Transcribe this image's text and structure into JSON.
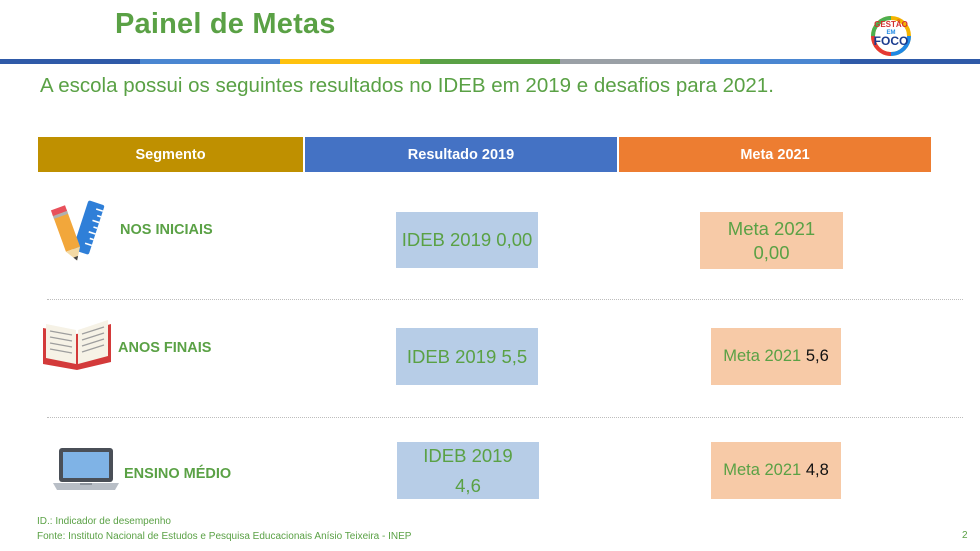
{
  "header": {
    "title": "Painel de Metas",
    "logo_line1": "GESTÃO",
    "logo_line2": "EM",
    "logo_line3": "FOCO"
  },
  "subtitle": "A escola possui os seguintes resultados no IDEB em 2019 e desafios para 2021.",
  "table": {
    "columns": [
      "Segmento",
      "Resultado 2019",
      "Meta 2021"
    ],
    "column_colors": [
      "#bf9000",
      "#4472c4",
      "#ed7d31"
    ],
    "rows": [
      {
        "icon": "pencil-ruler-icon",
        "segment": "NOS INICIAIS",
        "result_line1": "IDEB 2019 0,00",
        "result_line2": "",
        "meta_line1": "Meta 2021",
        "meta_line2": "0,00"
      },
      {
        "icon": "open-book-icon",
        "segment": "ANOS FINAIS",
        "result_line1": "IDEB 2019 5,5",
        "meta_prefix": "Meta 2021",
        "meta_value": "5,6"
      },
      {
        "icon": "laptop-icon",
        "segment": "ENSINO MÉDIO",
        "result_line1": "IDEB 2019",
        "result_line2": "4,6",
        "meta_prefix": "Meta 2021",
        "meta_value": "4,8"
      }
    ]
  },
  "footer": {
    "note": "ID.: Indicador de desempenho",
    "source": "Fonte: Instituto Nacional de Estudos e Pesquisa Educacionais Anísio Teixeira - INEP",
    "page_number": "2"
  },
  "colors": {
    "accent_green": "#5aa145",
    "result_box": "#b7cde7",
    "meta_box": "#f7caa7"
  }
}
